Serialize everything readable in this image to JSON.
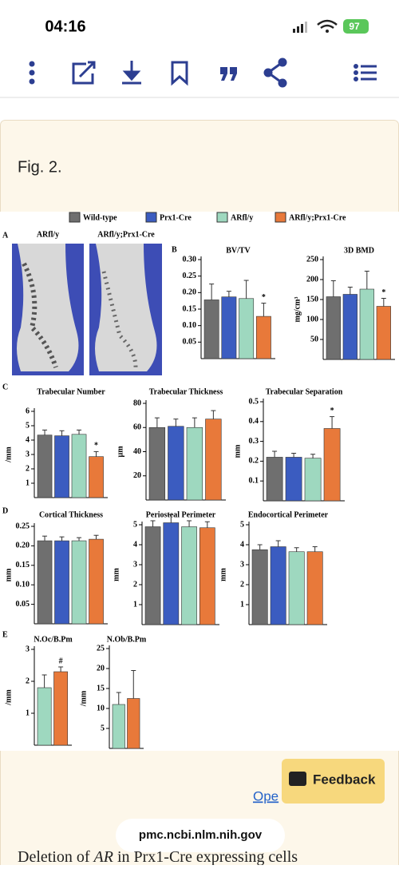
{
  "status_bar": {
    "time": "04:16",
    "battery": "97"
  },
  "figure": {
    "label": "Fig. 2.",
    "legend": [
      {
        "name": "Wild-type",
        "color": "#6f6f6f"
      },
      {
        "name": "Prx1-Cre",
        "color": "#3b5cc0"
      },
      {
        "name": "ARfl/y",
        "color": "#9ed8bf"
      },
      {
        "name": "ARfl/y;Prx1-Cre",
        "color": "#e8793a"
      }
    ],
    "panel_letters": [
      "A",
      "B",
      "C",
      "D",
      "E"
    ],
    "images": [
      "ARfl/y",
      "ARfl/y;Prx1-Cre"
    ]
  },
  "chart_data": [
    {
      "type": "bar",
      "title": "BV/TV",
      "ylim": [
        0,
        0.3
      ],
      "yticks": [
        0.05,
        {
          "value": 0.1,
          "label": "0.10"
        },
        0.15,
        {
          "value": 0.2,
          "label": "0.20"
        },
        0.25,
        {
          "value": 0.3,
          "label": "0.30"
        }
      ],
      "values": [
        0.178,
        0.187,
        0.182,
        0.128
      ],
      "errors": [
        0.048,
        0.017,
        0.055,
        0.04
      ],
      "colors": [
        "#6f6f6f",
        "#3b5cc0",
        "#9ed8bf",
        "#e8793a"
      ],
      "significance": [
        null,
        null,
        null,
        "*"
      ]
    },
    {
      "type": "bar",
      "title": "3D BMD",
      "ylabel": "mg/cm³",
      "ylim": [
        0,
        250
      ],
      "yticks": [
        50,
        100,
        150,
        200,
        250
      ],
      "values": [
        157,
        163,
        176,
        133
      ],
      "errors": [
        40,
        18,
        45,
        20
      ],
      "colors": [
        "#6f6f6f",
        "#3b5cc0",
        "#9ed8bf",
        "#e8793a"
      ],
      "significance": [
        null,
        null,
        null,
        "*"
      ]
    },
    {
      "type": "bar",
      "title": "Trabecular Number",
      "ylabel": "/mm",
      "ylim": [
        0,
        6
      ],
      "yticks": [
        1,
        2,
        3,
        4,
        5,
        6
      ],
      "values": [
        4.35,
        4.3,
        4.4,
        2.85
      ],
      "errors": [
        0.35,
        0.35,
        0.3,
        0.35
      ],
      "colors": [
        "#6f6f6f",
        "#3b5cc0",
        "#9ed8bf",
        "#e8793a"
      ],
      "significance": [
        null,
        null,
        null,
        "*"
      ]
    },
    {
      "type": "bar",
      "title": "Trabecular Thickness",
      "ylabel": "µm",
      "ylim": [
        0,
        80
      ],
      "yticks": [
        20,
        40,
        60,
        80
      ],
      "values": [
        60,
        61,
        60,
        67
      ],
      "errors": [
        8,
        6,
        8,
        7
      ],
      "colors": [
        "#6f6f6f",
        "#3b5cc0",
        "#9ed8bf",
        "#e8793a"
      ]
    },
    {
      "type": "bar",
      "title": "Trabecular Separation",
      "ylabel": "mm",
      "ylim": [
        0,
        0.5
      ],
      "yticks": [
        0.1,
        0.2,
        0.3,
        0.4,
        0.5
      ],
      "values": [
        0.22,
        0.22,
        0.215,
        0.365
      ],
      "errors": [
        0.03,
        0.02,
        0.02,
        0.06
      ],
      "colors": [
        "#6f6f6f",
        "#3b5cc0",
        "#9ed8bf",
        "#e8793a"
      ],
      "significance": [
        null,
        null,
        null,
        "*"
      ]
    },
    {
      "type": "bar",
      "title": "Cortical Thickness",
      "ylabel": "mm",
      "ylim": [
        0,
        0.25
      ],
      "yticks": [
        0.05,
        {
          "value": 0.1,
          "label": "0.10"
        },
        0.15,
        {
          "value": 0.2,
          "label": "0.20"
        },
        0.25
      ],
      "values": [
        0.213,
        0.213,
        0.213,
        0.217
      ],
      "errors": [
        0.012,
        0.01,
        0.008,
        0.01
      ],
      "colors": [
        "#6f6f6f",
        "#3b5cc0",
        "#9ed8bf",
        "#e8793a"
      ]
    },
    {
      "type": "bar",
      "title": "Periosteal Perimeter",
      "ylabel": "mm",
      "ylim": [
        0,
        5
      ],
      "yticks": [
        1,
        2,
        3,
        4,
        5
      ],
      "values": [
        4.9,
        5.1,
        4.9,
        4.85
      ],
      "errors": [
        0.3,
        0.4,
        0.3,
        0.3
      ],
      "colors": [
        "#6f6f6f",
        "#3b5cc0",
        "#9ed8bf",
        "#e8793a"
      ]
    },
    {
      "type": "bar",
      "title": "Endocortical Perimeter",
      "ylabel": "mm",
      "ylim": [
        0,
        5
      ],
      "yticks": [
        1,
        2,
        3,
        4,
        5
      ],
      "values": [
        3.75,
        3.9,
        3.65,
        3.65
      ],
      "errors": [
        0.25,
        0.3,
        0.2,
        0.25
      ],
      "colors": [
        "#6f6f6f",
        "#3b5cc0",
        "#9ed8bf",
        "#e8793a"
      ]
    },
    {
      "type": "bar",
      "title": "N.Oc/B.Pm",
      "ylabel": "/mm",
      "ylim": [
        0,
        3
      ],
      "yticks": [
        1,
        2,
        3
      ],
      "values": [
        1.8,
        2.3
      ],
      "errors": [
        0.4,
        0.15
      ],
      "colors": [
        "#9ed8bf",
        "#e8793a"
      ],
      "significance": [
        null,
        "#"
      ]
    },
    {
      "type": "bar",
      "title": "N.Ob/B.Pm",
      "ylabel": "/mm",
      "ylim": [
        0,
        25
      ],
      "yticks": [
        5,
        10,
        15,
        20,
        25
      ],
      "values": [
        11,
        12.5
      ],
      "errors": [
        3,
        7
      ],
      "colors": [
        "#9ed8bf",
        "#e8793a"
      ]
    }
  ],
  "footer": {
    "feedback": "Feedback",
    "link": "Ope",
    "url": "pmc.ncbi.nlm.nih.gov",
    "caption": [
      "Deletion of ",
      "AR",
      " in Prx1-Cre expressing cells"
    ]
  }
}
